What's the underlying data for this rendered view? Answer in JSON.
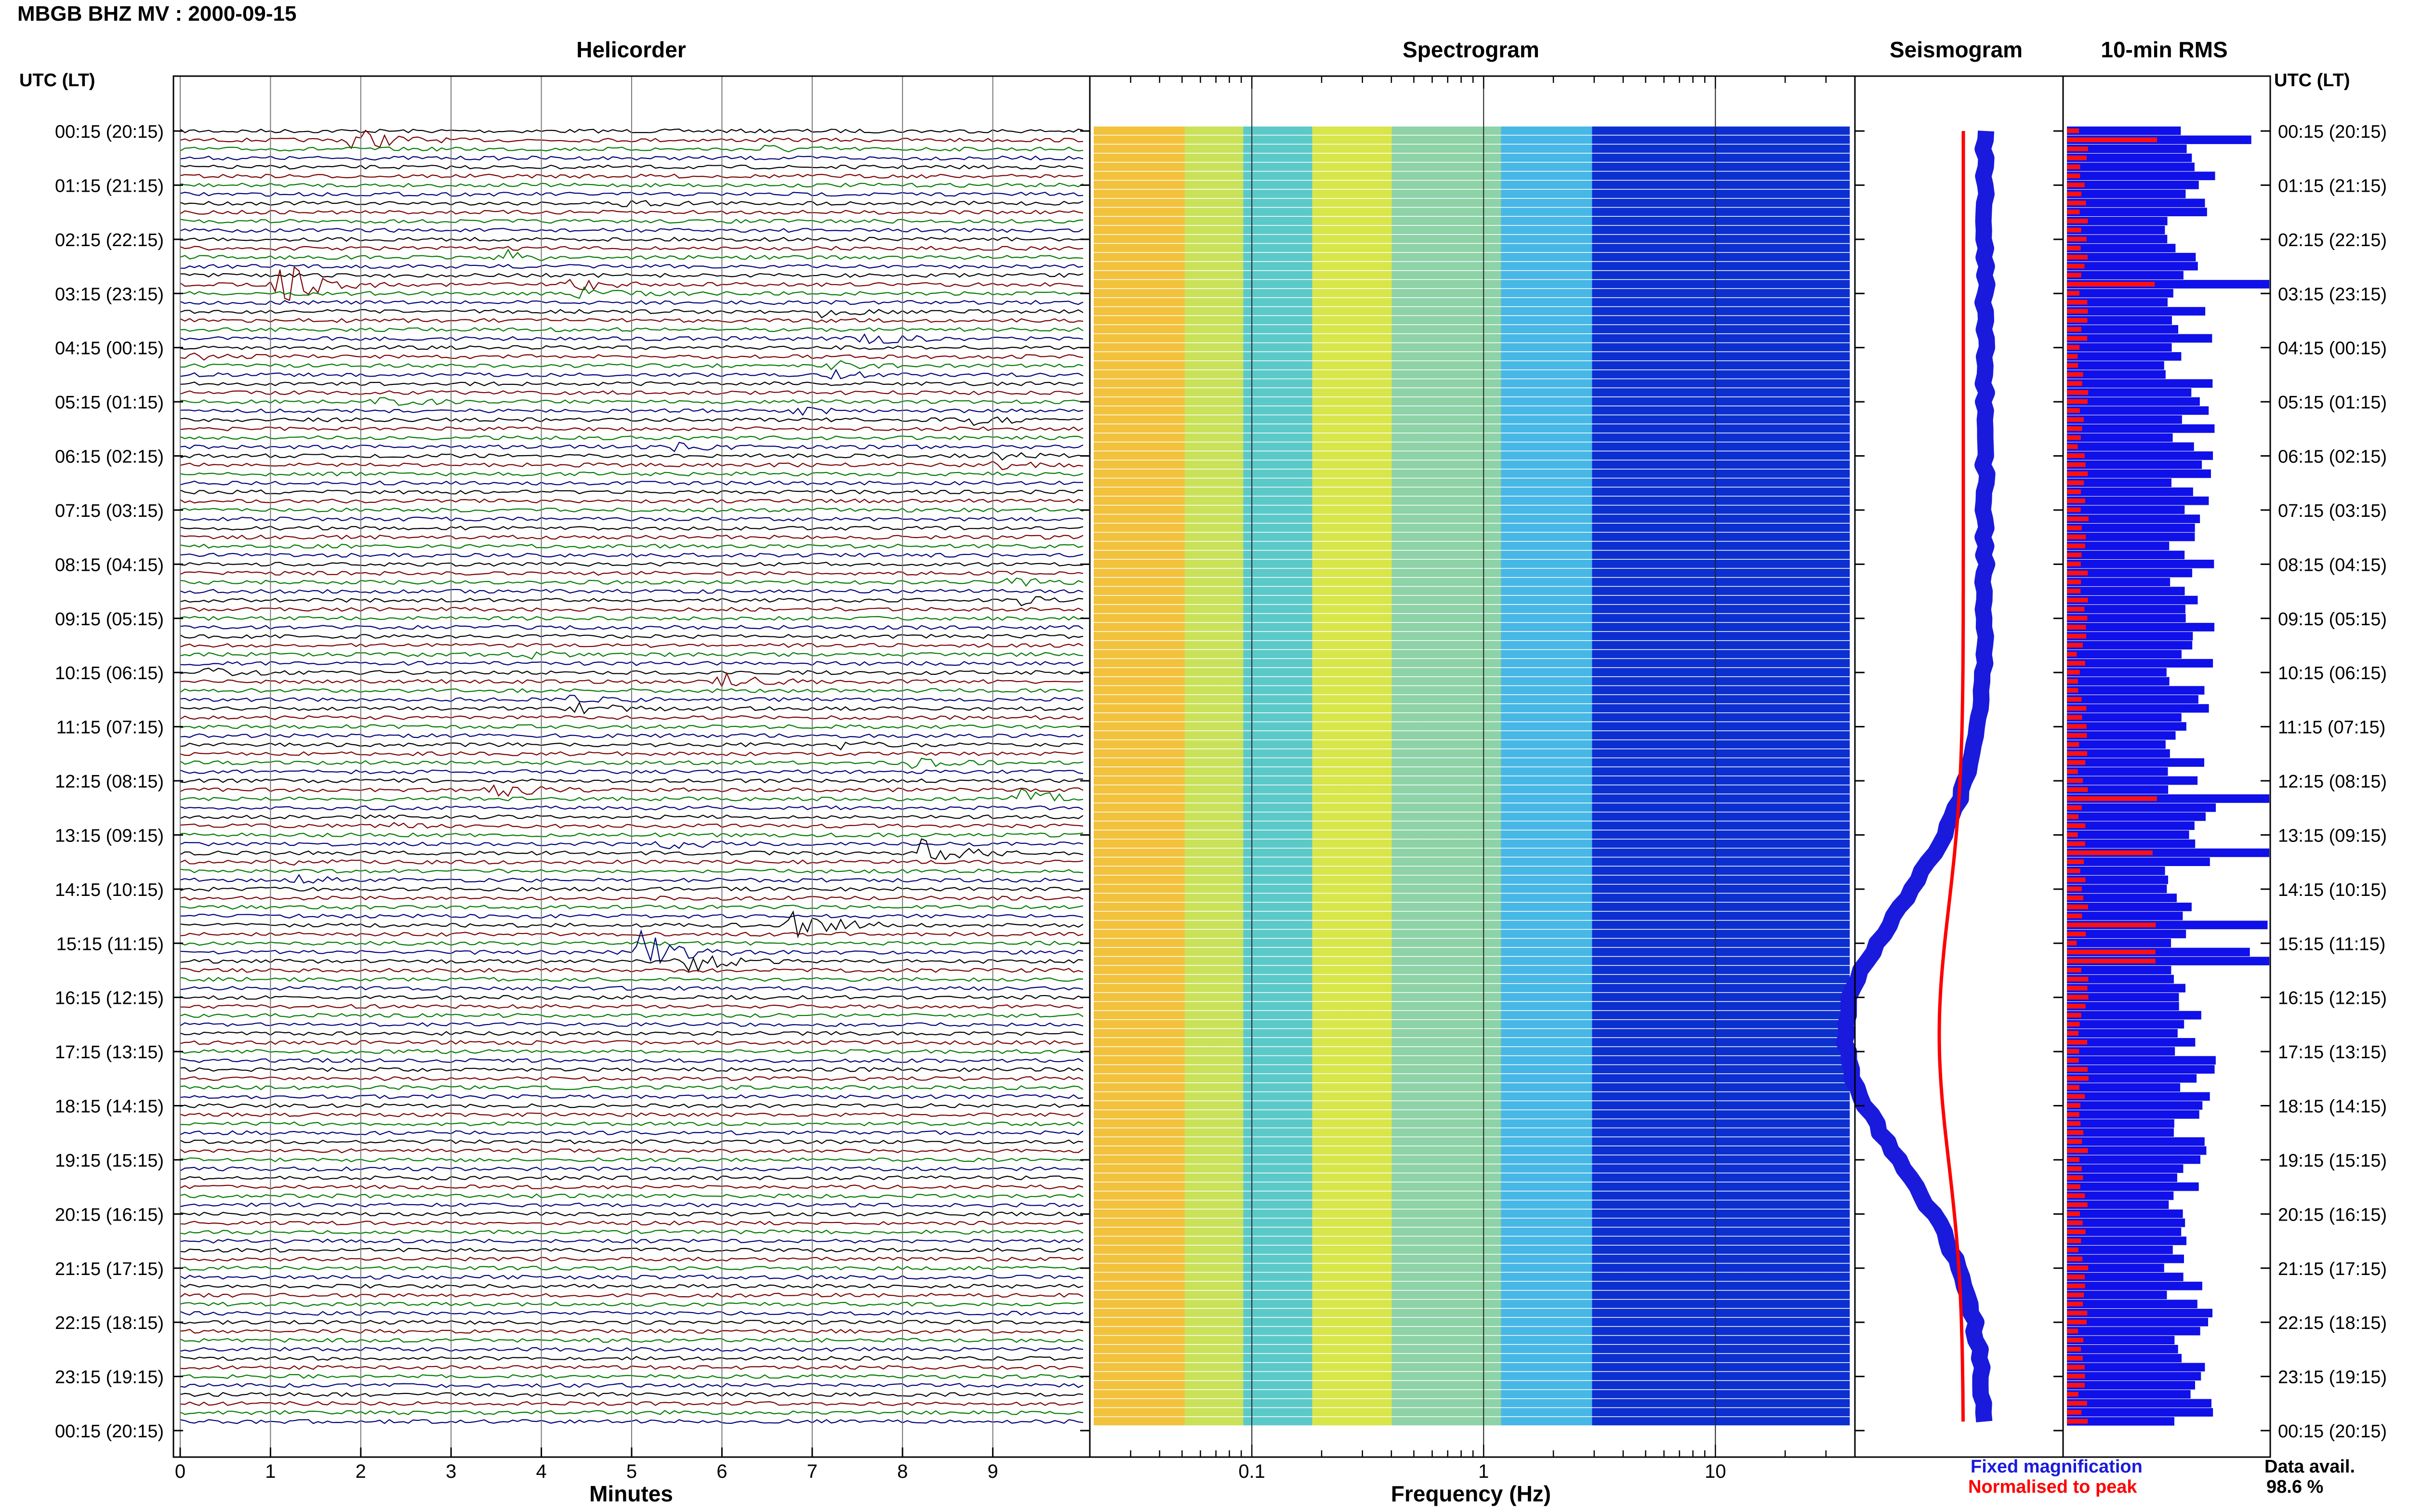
{
  "title": "MBGB BHZ MV : 2000-09-15",
  "chart_data": {
    "type": "heatmap",
    "panels": {
      "helicorder": {
        "title": "Helicorder",
        "xlabel": "Minutes",
        "xlim": [
          0,
          10
        ],
        "xticks": [
          "0",
          "1",
          "2",
          "3",
          "4",
          "5",
          "6",
          "7",
          "8",
          "9"
        ],
        "trace_colors": [
          "#000000",
          "#7a0000",
          "#007a00",
          "#00007a"
        ],
        "events": [
          {
            "row": 1,
            "minute": 1.9,
            "amp": 5.0
          },
          {
            "row": 2,
            "minute": 6.4,
            "amp": 1.6
          },
          {
            "row": 8,
            "minute": 4.9,
            "amp": 1.5
          },
          {
            "row": 14,
            "minute": 3.6,
            "amp": 2.2
          },
          {
            "row": 17,
            "minute": 1.1,
            "amp": 9.0
          },
          {
            "row": 17,
            "minute": 4.3,
            "amp": 3.0
          },
          {
            "row": 18,
            "minute": 4.4,
            "amp": 2.0
          },
          {
            "row": 20,
            "minute": 7.1,
            "amp": 1.5
          },
          {
            "row": 23,
            "minute": 7.6,
            "amp": 2.2
          },
          {
            "row": 25,
            "minute": 0.2,
            "amp": 1.3
          },
          {
            "row": 26,
            "minute": 7.2,
            "amp": 1.7
          },
          {
            "row": 27,
            "minute": 7.2,
            "amp": 1.5
          },
          {
            "row": 30,
            "minute": 2.2,
            "amp": 2.0
          },
          {
            "row": 31,
            "minute": 6.7,
            "amp": 1.5
          },
          {
            "row": 32,
            "minute": 8.8,
            "amp": 1.8
          },
          {
            "row": 35,
            "minute": 5.4,
            "amp": 1.6
          },
          {
            "row": 36,
            "minute": 9.0,
            "amp": 1.4
          },
          {
            "row": 37,
            "minute": 9.0,
            "amp": 1.4
          },
          {
            "row": 50,
            "minute": 9.2,
            "amp": 1.5
          },
          {
            "row": 52,
            "minute": 9.3,
            "amp": 1.5
          },
          {
            "row": 58,
            "minute": 3.8,
            "amp": 1.4
          },
          {
            "row": 60,
            "minute": 0.3,
            "amp": 1.2
          },
          {
            "row": 61,
            "minute": 6.0,
            "amp": 3.0
          },
          {
            "row": 64,
            "minute": 4.4,
            "amp": 2.0
          },
          {
            "row": 63,
            "minute": 4.2,
            "amp": 1.5
          },
          {
            "row": 68,
            "minute": 7.3,
            "amp": 1.4
          },
          {
            "row": 70,
            "minute": 8.1,
            "amp": 1.4
          },
          {
            "row": 73,
            "minute": 3.5,
            "amp": 2.5
          },
          {
            "row": 74,
            "minute": 9.3,
            "amp": 4.0
          },
          {
            "row": 77,
            "minute": 2.4,
            "amp": 1.2
          },
          {
            "row": 79,
            "minute": 5.4,
            "amp": 2.4
          },
          {
            "row": 80,
            "minute": 8.2,
            "amp": 4.5
          },
          {
            "row": 81,
            "minute": 1.0,
            "amp": 1.5
          },
          {
            "row": 83,
            "minute": 1.3,
            "amp": 1.5
          },
          {
            "row": 88,
            "minute": 6.8,
            "amp": 7.0
          },
          {
            "row": 91,
            "minute": 5.1,
            "amp": 8.0
          },
          {
            "row": 92,
            "minute": 5.6,
            "amp": 5.0
          }
        ]
      },
      "spectrogram": {
        "title": "Spectrogram",
        "xlabel": "Frequency (Hz)",
        "xscale": "log",
        "xlim": [
          0.02,
          40
        ],
        "xticks": [
          "0.1",
          "1",
          "10"
        ],
        "bands": [
          {
            "from": 0.02,
            "to": 0.05,
            "color": "#f2c23c"
          },
          {
            "from": 0.05,
            "to": 0.09,
            "color": "#c9e25a"
          },
          {
            "from": 0.09,
            "to": 0.18,
            "color": "#5cc9c9"
          },
          {
            "from": 0.18,
            "to": 0.4,
            "color": "#d8e64a"
          },
          {
            "from": 0.4,
            "to": 1.2,
            "color": "#8ed2a8"
          },
          {
            "from": 1.2,
            "to": 3.0,
            "color": "#47b7e6"
          },
          {
            "from": 3.0,
            "to": 40,
            "color": "#0c2fd0"
          }
        ]
      },
      "seismogram": {
        "title": "Seismogram",
        "legend": [
          {
            "label": "Fixed magnification",
            "color": "#1a1adc"
          },
          {
            "label": "Normalised to peak",
            "color": "#ff0000"
          }
        ]
      },
      "rms": {
        "title": "10-min RMS",
        "availability_label": "Data avail.",
        "availability_value": "98.6 %"
      }
    },
    "time_axis": {
      "title": "UTC (LT)",
      "ticks": [
        "00:15 (20:15)",
        "01:15 (21:15)",
        "02:15 (22:15)",
        "03:15 (23:15)",
        "04:15 (00:15)",
        "05:15 (01:15)",
        "06:15 (02:15)",
        "07:15 (03:15)",
        "08:15 (04:15)",
        "09:15 (05:15)",
        "10:15 (06:15)",
        "11:15 (07:15)",
        "12:15 (08:15)",
        "13:15 (09:15)",
        "14:15 (10:15)",
        "15:15 (11:15)",
        "16:15 (12:15)",
        "17:15 (13:15)",
        "18:15 (14:15)",
        "19:15 (15:15)",
        "20:15 (16:15)",
        "21:15 (17:15)",
        "22:15 (18:15)",
        "23:15 (19:15)",
        "00:15 (20:15)"
      ],
      "rows_per_hour": 6,
      "rows": 144
    }
  }
}
